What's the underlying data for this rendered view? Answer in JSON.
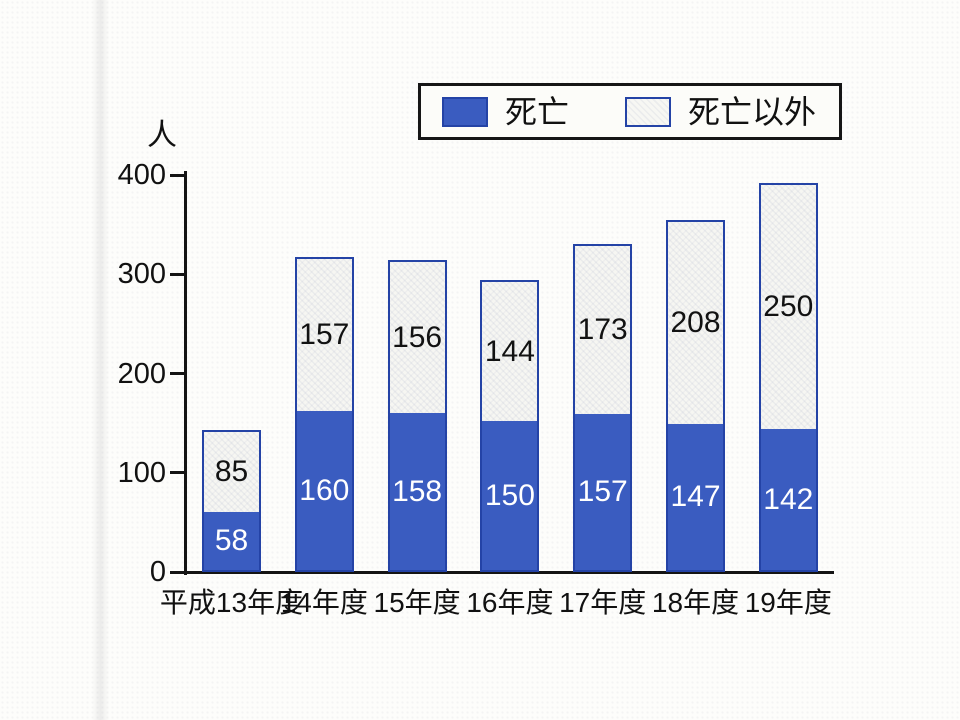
{
  "chart_data": {
    "type": "bar",
    "stacked": true,
    "title": "",
    "ylabel": "人",
    "xlabel": "",
    "ylim": [
      0,
      400
    ],
    "yticks": [
      0,
      100,
      200,
      300,
      400
    ],
    "grid": false,
    "legend_position": "top-right",
    "categories": [
      "平成13年度",
      "14年度",
      "15年度",
      "16年度",
      "17年度",
      "18年度",
      "19年度"
    ],
    "series": [
      {
        "name": "死亡",
        "color": "#3a5cc0",
        "label_text_color": "#ffffff",
        "values": [
          58,
          160,
          158,
          150,
          157,
          147,
          142
        ]
      },
      {
        "name": "死亡以外",
        "color": "#f6f6f2",
        "label_text_color": "#121212",
        "values": [
          85,
          157,
          156,
          144,
          173,
          208,
          250
        ]
      }
    ]
  }
}
